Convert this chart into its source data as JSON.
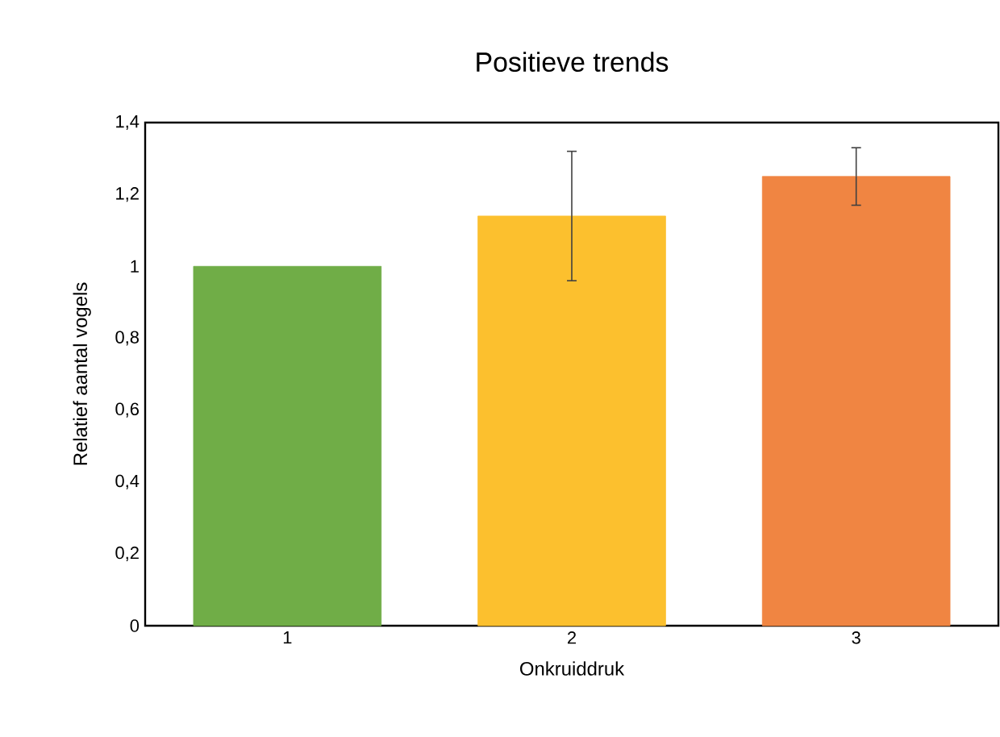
{
  "chart_data": {
    "type": "bar",
    "title": "Positieve trends",
    "xlabel": "Onkruiddruk",
    "ylabel": "Relatief aantal vogels",
    "categories": [
      "1",
      "2",
      "3"
    ],
    "values": [
      1.0,
      1.14,
      1.25
    ],
    "errors": [
      null,
      0.18,
      0.08
    ],
    "colors": [
      "#70ad47",
      "#fcc02e",
      "#f08542"
    ],
    "ylim": [
      0,
      1.4
    ],
    "yticks": [
      0,
      {
        "value": 0.2,
        "label": "0,2"
      },
      {
        "value": 0.4,
        "label": "0,4"
      },
      {
        "value": 0.6,
        "label": "0,6"
      },
      {
        "value": 0.8,
        "label": "0,8"
      },
      1,
      {
        "value": 1.2,
        "label": "1,2"
      },
      {
        "value": 1.4,
        "label": "1,4"
      }
    ],
    "marker": "none"
  }
}
